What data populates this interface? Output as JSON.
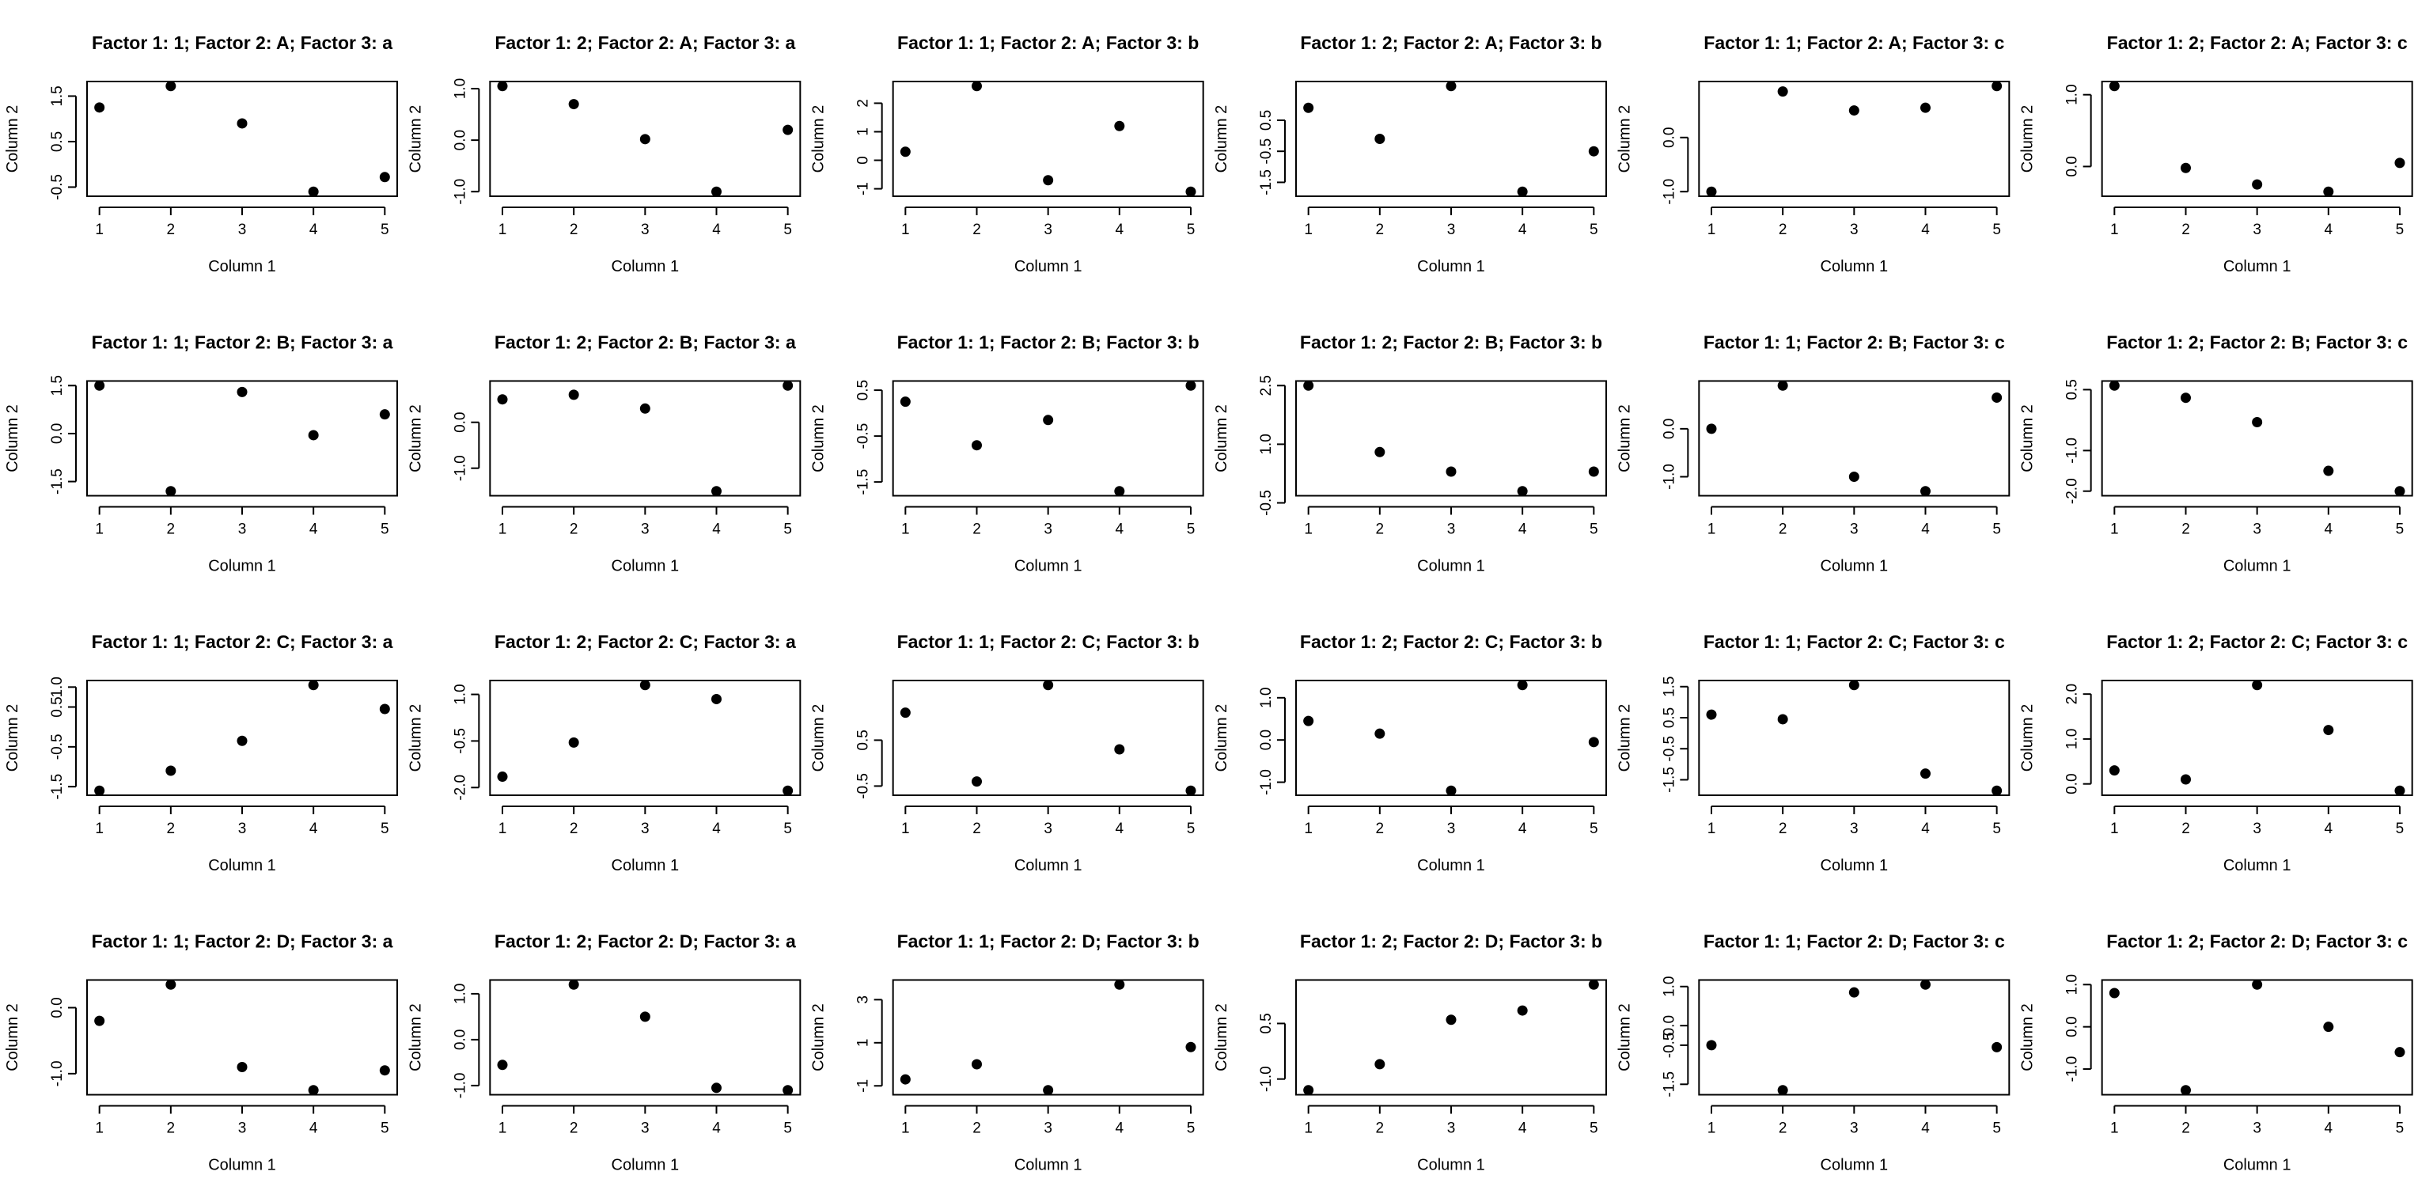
{
  "chart_data": [
    {
      "type": "scatter",
      "title": "Factor 1: 1; Factor 2: A; Factor 3: a",
      "xlabel": "Column 1",
      "ylabel": "Column 2",
      "x": [
        1,
        2,
        3,
        4,
        5
      ],
      "y": [
        1.25,
        1.72,
        0.9,
        -0.6,
        -0.28
      ],
      "xticks": [
        "1",
        "2",
        "3",
        "4",
        "5"
      ],
      "yticks": [
        "-0.5",
        "0.5",
        "1.5"
      ],
      "ylim": [
        -0.6,
        1.72
      ]
    },
    {
      "type": "scatter",
      "title": "Factor 1: 2; Factor 2: A; Factor 3: a",
      "xlabel": "Column 1",
      "ylabel": "Column 2",
      "x": [
        1,
        2,
        3,
        4,
        5
      ],
      "y": [
        1.05,
        0.7,
        0.02,
        -1.0,
        0.2
      ],
      "xticks": [
        "1",
        "2",
        "3",
        "4",
        "5"
      ],
      "yticks": [
        "-1.0",
        "0.0",
        "1.0"
      ],
      "ylim": [
        -1.0,
        1.05
      ]
    },
    {
      "type": "scatter",
      "title": "Factor 1: 1; Factor 2: A; Factor 3: b",
      "xlabel": "Column 1",
      "ylabel": "Column 2",
      "x": [
        1,
        2,
        3,
        4,
        5
      ],
      "y": [
        0.3,
        2.6,
        -0.7,
        1.2,
        -1.1
      ],
      "xticks": [
        "1",
        "2",
        "3",
        "4",
        "5"
      ],
      "yticks": [
        "-1",
        "0",
        "1",
        "2"
      ],
      "ylim": [
        -1.1,
        2.6
      ]
    },
    {
      "type": "scatter",
      "title": "Factor 1: 2; Factor 2: A; Factor 3: b",
      "xlabel": "Column 1",
      "ylabel": "Column 2",
      "x": [
        1,
        2,
        3,
        4,
        5
      ],
      "y": [
        0.9,
        -0.1,
        1.6,
        -1.8,
        -0.5
      ],
      "xticks": [
        "1",
        "2",
        "3",
        "4",
        "5"
      ],
      "yticks": [
        "-1.5",
        "-0.5",
        "0.5"
      ],
      "ylim": [
        -1.8,
        1.6
      ]
    },
    {
      "type": "scatter",
      "title": "Factor 1: 1; Factor 2: A; Factor 3: c",
      "xlabel": "Column 1",
      "ylabel": "Column 2",
      "x": [
        1,
        2,
        3,
        4,
        5
      ],
      "y": [
        -1.0,
        0.85,
        0.5,
        0.55,
        0.95
      ],
      "xticks": [
        "1",
        "2",
        "3",
        "4",
        "5"
      ],
      "yticks": [
        "-1.0",
        "0.0"
      ],
      "ylim": [
        -1.0,
        0.95
      ]
    },
    {
      "type": "scatter",
      "title": "Factor 1: 2; Factor 2: A; Factor 3: c",
      "xlabel": "Column 1",
      "ylabel": "Column 2",
      "x": [
        1,
        2,
        3,
        4,
        5
      ],
      "y": [
        1.12,
        -0.02,
        -0.25,
        -0.35,
        0.05
      ],
      "xticks": [
        "1",
        "2",
        "3",
        "4",
        "5"
      ],
      "yticks": [
        "0.0",
        "1.0"
      ],
      "ylim": [
        -0.35,
        1.12
      ]
    },
    {
      "type": "scatter",
      "title": "Factor 1: 1; Factor 2: B; Factor 3: a",
      "xlabel": "Column 1",
      "ylabel": "Column 2",
      "x": [
        1,
        2,
        3,
        4,
        5
      ],
      "y": [
        1.5,
        -1.8,
        1.3,
        -0.05,
        0.6
      ],
      "xticks": [
        "1",
        "2",
        "3",
        "4",
        "5"
      ],
      "yticks": [
        "-1.5",
        "0.0",
        "1.5"
      ],
      "ylim": [
        -1.8,
        1.5
      ]
    },
    {
      "type": "scatter",
      "title": "Factor 1: 2; Factor 2: B; Factor 3: a",
      "xlabel": "Column 1",
      "ylabel": "Column 2",
      "x": [
        1,
        2,
        3,
        4,
        5
      ],
      "y": [
        0.5,
        0.6,
        0.3,
        -1.5,
        0.8
      ],
      "xticks": [
        "1",
        "2",
        "3",
        "4",
        "5"
      ],
      "yticks": [
        "-1.0",
        "0.0"
      ],
      "ylim": [
        -1.5,
        0.8
      ]
    },
    {
      "type": "scatter",
      "title": "Factor 1: 1; Factor 2: B; Factor 3: b",
      "xlabel": "Column 1",
      "ylabel": "Column 2",
      "x": [
        1,
        2,
        3,
        4,
        5
      ],
      "y": [
        0.25,
        -0.7,
        -0.15,
        -1.7,
        0.6
      ],
      "xticks": [
        "1",
        "2",
        "3",
        "4",
        "5"
      ],
      "yticks": [
        "-1.5",
        "-0.5",
        "0.5"
      ],
      "ylim": [
        -1.7,
        0.6
      ]
    },
    {
      "type": "scatter",
      "title": "Factor 1: 2; Factor 2: B; Factor 3: b",
      "xlabel": "Column 1",
      "ylabel": "Column 2",
      "x": [
        1,
        2,
        3,
        4,
        5
      ],
      "y": [
        2.5,
        0.8,
        0.3,
        -0.2,
        0.3
      ],
      "xticks": [
        "1",
        "2",
        "3",
        "4",
        "5"
      ],
      "yticks": [
        "-0.5",
        "1.0",
        "2.5"
      ],
      "ylim": [
        -0.2,
        2.5
      ]
    },
    {
      "type": "scatter",
      "title": "Factor 1: 1; Factor 2: B; Factor 3: c",
      "xlabel": "Column 1",
      "ylabel": "Column 2",
      "x": [
        1,
        2,
        3,
        4,
        5
      ],
      "y": [
        0.0,
        0.9,
        -1.0,
        -1.3,
        0.65
      ],
      "xticks": [
        "1",
        "2",
        "3",
        "4",
        "5"
      ],
      "yticks": [
        "-1.0",
        "0.0"
      ],
      "ylim": [
        -1.3,
        0.9
      ]
    },
    {
      "type": "scatter",
      "title": "Factor 1: 2; Factor 2: B; Factor 3: c",
      "xlabel": "Column 1",
      "ylabel": "Column 2",
      "x": [
        1,
        2,
        3,
        4,
        5
      ],
      "y": [
        0.6,
        0.3,
        -0.3,
        -1.5,
        -2.0
      ],
      "xticks": [
        "1",
        "2",
        "3",
        "4",
        "5"
      ],
      "yticks": [
        "-2.0",
        "-1.0",
        "0.5"
      ],
      "ylim": [
        -2.0,
        0.6
      ]
    },
    {
      "type": "scatter",
      "title": "Factor 1: 1; Factor 2: C; Factor 3: a",
      "xlabel": "Column 1",
      "ylabel": "Column 2",
      "x": [
        1,
        2,
        3,
        4,
        5
      ],
      "y": [
        -1.6,
        -1.1,
        -0.35,
        1.05,
        0.45
      ],
      "xticks": [
        "1",
        "2",
        "3",
        "4",
        "5"
      ],
      "yticks": [
        "-1.5",
        "-0.5",
        "0.5",
        "1.0"
      ],
      "ylim": [
        -1.6,
        1.05
      ]
    },
    {
      "type": "scatter",
      "title": "Factor 1: 2; Factor 2: C; Factor 3: a",
      "xlabel": "Column 1",
      "ylabel": "Column 2",
      "x": [
        1,
        2,
        3,
        4,
        5
      ],
      "y": [
        -1.65,
        -0.55,
        1.3,
        0.85,
        -2.1
      ],
      "xticks": [
        "1",
        "2",
        "3",
        "4",
        "5"
      ],
      "yticks": [
        "-2.0",
        "-0.5",
        "1.0"
      ],
      "ylim": [
        -2.1,
        1.3
      ]
    },
    {
      "type": "scatter",
      "title": "Factor 1: 1; Factor 2: C; Factor 3: b",
      "xlabel": "Column 1",
      "ylabel": "Column 2",
      "x": [
        1,
        2,
        3,
        4,
        5
      ],
      "y": [
        1.1,
        -0.4,
        1.7,
        0.3,
        -0.6
      ],
      "xticks": [
        "1",
        "2",
        "3",
        "4",
        "5"
      ],
      "yticks": [
        "-0.5",
        "0.5"
      ],
      "ylim": [
        -0.6,
        1.7
      ]
    },
    {
      "type": "scatter",
      "title": "Factor 1: 2; Factor 2: C; Factor 3: b",
      "xlabel": "Column 1",
      "ylabel": "Column 2",
      "x": [
        1,
        2,
        3,
        4,
        5
      ],
      "y": [
        0.45,
        0.15,
        -1.2,
        1.3,
        -0.05
      ],
      "xticks": [
        "1",
        "2",
        "3",
        "4",
        "5"
      ],
      "yticks": [
        "-1.0",
        "0.0",
        "1.0"
      ],
      "ylim": [
        -1.2,
        1.3
      ]
    },
    {
      "type": "scatter",
      "title": "Factor 1: 1; Factor 2: C; Factor 3: c",
      "xlabel": "Column 1",
      "ylabel": "Column 2",
      "x": [
        1,
        2,
        3,
        4,
        5
      ],
      "y": [
        0.6,
        0.45,
        1.55,
        -1.3,
        -1.85
      ],
      "xticks": [
        "1",
        "2",
        "3",
        "4",
        "5"
      ],
      "yticks": [
        "-1.5",
        "-0.5",
        "0.5",
        "1.5"
      ],
      "ylim": [
        -1.85,
        1.55
      ]
    },
    {
      "type": "scatter",
      "title": "Factor 1: 2; Factor 2: C; Factor 3: c",
      "xlabel": "Column 1",
      "ylabel": "Column 2",
      "x": [
        1,
        2,
        3,
        4,
        5
      ],
      "y": [
        0.3,
        0.1,
        2.2,
        1.2,
        -0.15
      ],
      "xticks": [
        "1",
        "2",
        "3",
        "4",
        "5"
      ],
      "yticks": [
        "0.0",
        "1.0",
        "2.0"
      ],
      "ylim": [
        -0.15,
        2.2
      ]
    },
    {
      "type": "scatter",
      "title": "Factor 1: 1; Factor 2: D; Factor 3: a",
      "xlabel": "Column 1",
      "ylabel": "Column 2",
      "x": [
        1,
        2,
        3,
        4,
        5
      ],
      "y": [
        -0.2,
        0.35,
        -0.9,
        -1.25,
        -0.95
      ],
      "xticks": [
        "1",
        "2",
        "3",
        "4",
        "5"
      ],
      "yticks": [
        "-1.0",
        "0.0"
      ],
      "ylim": [
        -1.25,
        0.35
      ]
    },
    {
      "type": "scatter",
      "title": "Factor 1: 2; Factor 2: D; Factor 3: a",
      "xlabel": "Column 1",
      "ylabel": "Column 2",
      "x": [
        1,
        2,
        3,
        4,
        5
      ],
      "y": [
        -0.55,
        1.2,
        0.5,
        -1.05,
        -1.1
      ],
      "xticks": [
        "1",
        "2",
        "3",
        "4",
        "5"
      ],
      "yticks": [
        "-1.0",
        "0.0",
        "1.0"
      ],
      "ylim": [
        -1.1,
        1.2
      ]
    },
    {
      "type": "scatter",
      "title": "Factor 1: 1; Factor 2: D; Factor 3: b",
      "xlabel": "Column 1",
      "ylabel": "Column 2",
      "x": [
        1,
        2,
        3,
        4,
        5
      ],
      "y": [
        -0.7,
        0.0,
        -1.2,
        3.7,
        0.8
      ],
      "xticks": [
        "1",
        "2",
        "3",
        "4",
        "5"
      ],
      "yticks": [
        "-1",
        "1",
        "3"
      ],
      "ylim": [
        -1.2,
        3.7
      ]
    },
    {
      "type": "scatter",
      "title": "Factor 1: 2; Factor 2: D; Factor 3: b",
      "xlabel": "Column 1",
      "ylabel": "Column 2",
      "x": [
        1,
        2,
        3,
        4,
        5
      ],
      "y": [
        -1.3,
        -0.6,
        0.6,
        0.85,
        1.55
      ],
      "xticks": [
        "1",
        "2",
        "3",
        "4",
        "5"
      ],
      "yticks": [
        "-1.0",
        "0.5"
      ],
      "ylim": [
        -1.3,
        1.55
      ]
    },
    {
      "type": "scatter",
      "title": "Factor 1: 1; Factor 2: D; Factor 3: c",
      "xlabel": "Column 1",
      "ylabel": "Column 2",
      "x": [
        1,
        2,
        3,
        4,
        5
      ],
      "y": [
        -0.5,
        -1.65,
        0.85,
        1.05,
        -0.55
      ],
      "xticks": [
        "1",
        "2",
        "3",
        "4",
        "5"
      ],
      "yticks": [
        "-1.5",
        "-0.5",
        "0.0",
        "1.0"
      ],
      "ylim": [
        -1.65,
        1.05
      ]
    },
    {
      "type": "scatter",
      "title": "Factor 1: 2; Factor 2: D; Factor 3: c",
      "xlabel": "Column 1",
      "ylabel": "Column 2",
      "x": [
        1,
        2,
        3,
        4,
        5
      ],
      "y": [
        0.8,
        -1.5,
        1.0,
        0.0,
        -0.6
      ],
      "xticks": [
        "1",
        "2",
        "3",
        "4",
        "5"
      ],
      "yticks": [
        "-1.0",
        "0.0",
        "1.0"
      ],
      "ylim": [
        -1.5,
        1.0
      ]
    }
  ]
}
